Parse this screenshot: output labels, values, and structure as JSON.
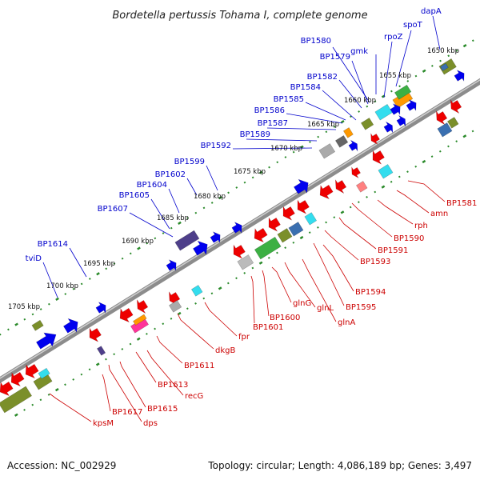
{
  "title": "Bordetella pertussis Tohama I, complete genome",
  "footer": {
    "accession": "Accession: NC_002929",
    "summary": "Topology: circular; Length: 4,086,189 bp; Genes: 3,497"
  },
  "colors": {
    "forward_label": "#0000cc",
    "reverse_label": "#cc0000",
    "backbone": "#7a7a7a",
    "ticks": "#2a8a2a",
    "strand_forward_arrow": "#0000ee",
    "strand_reverse_arrow": "#ee0000"
  },
  "scale_labels": [
    "1650 kbp",
    "1655 kbp",
    "1660 kbp",
    "1665 kbp",
    "1670 kbp",
    "1675 kbp",
    "1680 kbp",
    "1685 kbp",
    "1690 kbp",
    "1695 kbp",
    "1700 kbp",
    "1705 kbp"
  ],
  "forward_labels": [
    "dapA",
    "spoT",
    "rpoZ",
    "gmk",
    "BP1580",
    "BP1579",
    "BP1582",
    "BP1584",
    "BP1585",
    "BP1586",
    "BP1587",
    "BP1589",
    "BP1592",
    "BP1599",
    "BP1602",
    "BP1604",
    "BP1605",
    "BP1607",
    "BP1614",
    "tviD"
  ],
  "reverse_labels": [
    "BP1581",
    "amn",
    "rph",
    "BP1590",
    "BP1591",
    "BP1593",
    "BP1594",
    "BP1595",
    "glnA",
    "glnL",
    "glnG",
    "BP1600",
    "BP1601",
    "fpr",
    "dkgB",
    "BP1611",
    "recG",
    "BP1613",
    "BP1615",
    "dps",
    "BP1617",
    "kpsM"
  ]
}
